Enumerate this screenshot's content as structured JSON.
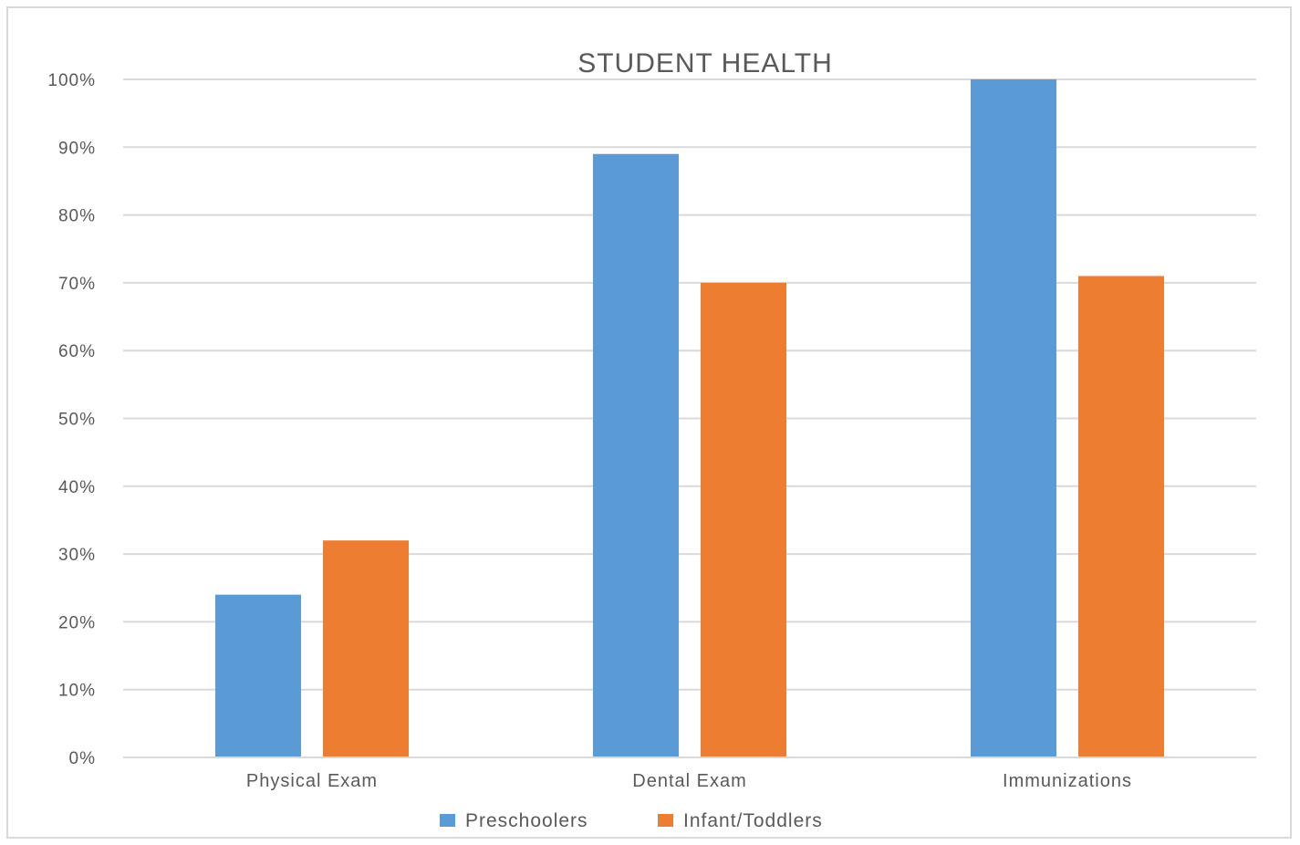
{
  "chart_data": {
    "type": "bar",
    "title": "STUDENT HEALTH",
    "xlabel": "",
    "ylabel": "",
    "categories": [
      "Physical Exam",
      "Dental Exam",
      "Immunizations"
    ],
    "y_ticks": [
      "0%",
      "10%",
      "20%",
      "30%",
      "40%",
      "50%",
      "60%",
      "70%",
      "80%",
      "90%",
      "100%"
    ],
    "ylim": [
      0,
      100
    ],
    "grid": true,
    "legend_position": "bottom",
    "series": [
      {
        "name": "Preschoolers",
        "color": "#5b9bd5",
        "values": [
          24,
          89,
          100
        ]
      },
      {
        "name": "Infant/Toddlers",
        "color": "#ed7d31",
        "values": [
          32,
          70,
          71
        ]
      }
    ]
  }
}
